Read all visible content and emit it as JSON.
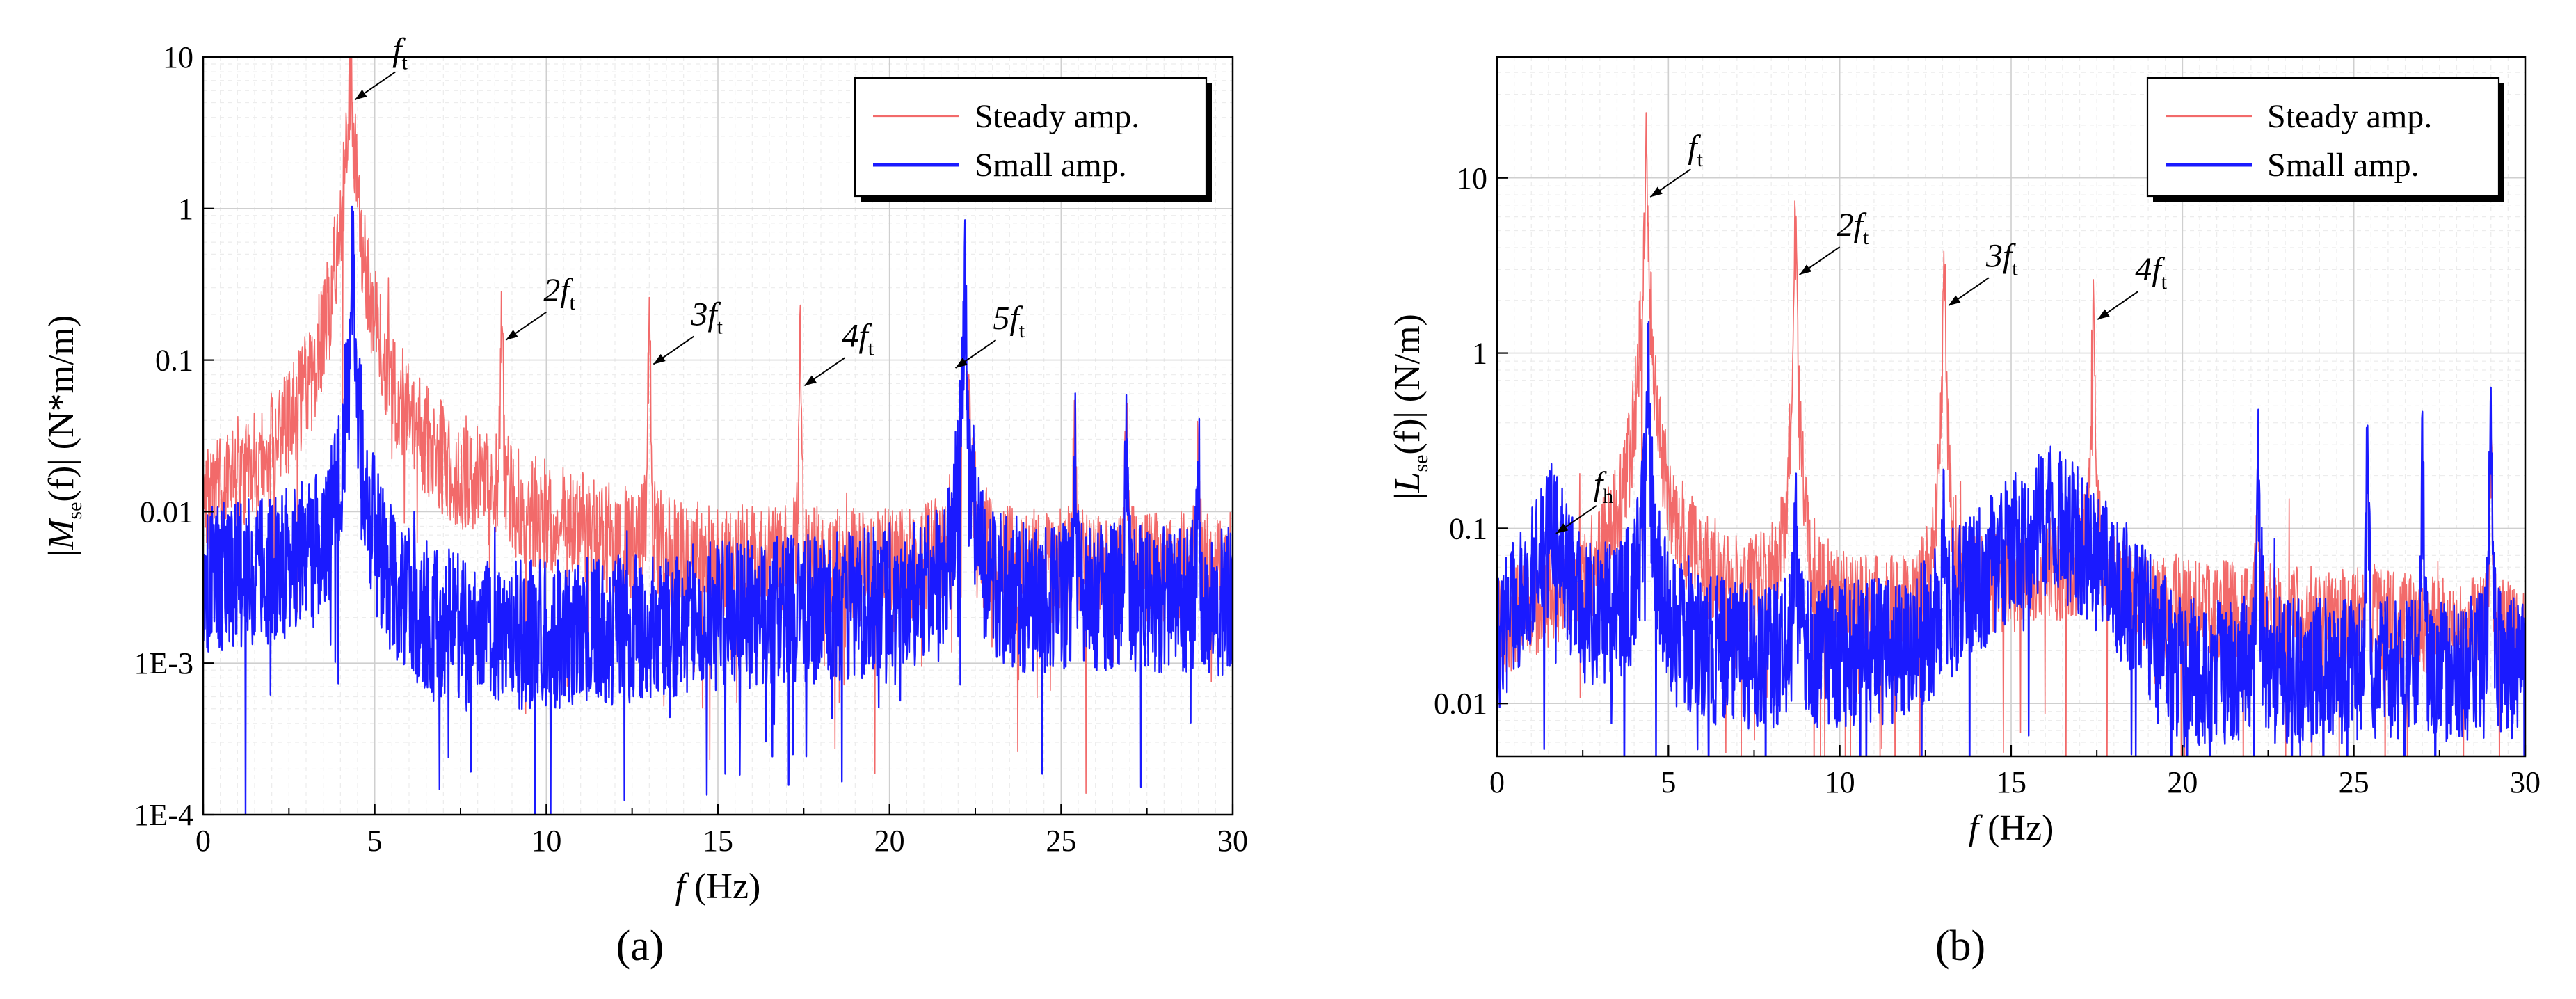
{
  "figure": {
    "panel_a_label": "(a)",
    "panel_b_label": "(b)"
  },
  "chart_data": [
    {
      "type": "line",
      "panel": "a",
      "xlabel": "f (Hz)",
      "ylabel": "|Mse(f)| (N*m/m)",
      "ylabel_parts": {
        "pre": "|",
        "main": "M",
        "sub": "se",
        "arg": "(f)|  (N*m/m)"
      },
      "xlim": [
        0,
        30
      ],
      "ylim_log10": [
        -4,
        1
      ],
      "yscale": "log",
      "xticks": [
        0,
        5,
        10,
        15,
        20,
        25,
        30
      ],
      "yticks": [
        {
          "value": 10,
          "label": "10"
        },
        {
          "value": 1,
          "label": "1"
        },
        {
          "value": 0.1,
          "label": "0.1"
        },
        {
          "value": 0.01,
          "label": "0.01"
        },
        {
          "value": 0.001,
          "label": "1E-3"
        },
        {
          "value": 0.0001,
          "label": "1E-4"
        }
      ],
      "grid": true,
      "legend_position": "top-right",
      "series": [
        {
          "name": "Steady amp.",
          "color": "#f26a6a",
          "baseline": [
            [
              0,
              0.006
            ],
            [
              3.4,
              0.012
            ],
            [
              5.5,
              0.012
            ],
            [
              8.5,
              0.008
            ],
            [
              12,
              0.005
            ],
            [
              14,
              0.004
            ],
            [
              20,
              0.004
            ],
            [
              30,
              0.004
            ]
          ],
          "peaks": [
            [
              4.3,
              5.0,
              0.5
            ],
            [
              8.7,
              0.13,
              0.07
            ],
            [
              13.0,
              0.09,
              0.07
            ],
            [
              17.4,
              0.065,
              0.07
            ],
            [
              22.2,
              0.16,
              0.25
            ],
            [
              25.4,
              0.015,
              0.12
            ],
            [
              26.9,
              0.018,
              0.12
            ],
            [
              29.0,
              0.012,
              0.12
            ]
          ],
          "noise": 0.75,
          "seed": 7
        },
        {
          "name": "Small amp.",
          "color": "#1a1aff",
          "baseline": [
            [
              0,
              0.0035
            ],
            [
              3.0,
              0.004
            ],
            [
              5.5,
              0.0018
            ],
            [
              8,
              0.0014
            ],
            [
              12,
              0.0016
            ],
            [
              15,
              0.002
            ],
            [
              20,
              0.0025
            ],
            [
              30,
              0.0025
            ]
          ],
          "peaks": [
            [
              4.35,
              0.25,
              0.35
            ],
            [
              22.2,
              0.15,
              0.25
            ],
            [
              25.4,
              0.012,
              0.1
            ],
            [
              26.9,
              0.02,
              0.1
            ],
            [
              29.0,
              0.013,
              0.1
            ]
          ],
          "noise": 1.0,
          "seed": 13
        }
      ],
      "annotations": [
        {
          "label": "f",
          "sub": "t",
          "x": 4.3,
          "y": 5.0
        },
        {
          "label": "2f",
          "sub": "t",
          "x": 8.7,
          "y": 0.13
        },
        {
          "label": "3f",
          "sub": "t",
          "x": 13.0,
          "y": 0.09
        },
        {
          "label": "4f",
          "sub": "t",
          "x": 17.4,
          "y": 0.065
        },
        {
          "label": "5f",
          "sub": "t",
          "x": 21.8,
          "y": 0.085
        }
      ]
    },
    {
      "type": "line",
      "panel": "b",
      "xlabel": "f (Hz)",
      "ylabel": "|Lse(f)| (N/m)",
      "ylabel_parts": {
        "pre": "|",
        "main": "L",
        "sub": "se",
        "arg": "(f)| (N/m)"
      },
      "xlim": [
        0,
        30
      ],
      "ylim_log10": [
        -2.301,
        1.69
      ],
      "yscale": "log",
      "xticks": [
        0,
        5,
        10,
        15,
        20,
        25,
        30
      ],
      "yticks": [
        {
          "value": 10,
          "label": "10"
        },
        {
          "value": 1,
          "label": "1"
        },
        {
          "value": 0.1,
          "label": "0.1"
        },
        {
          "value": 0.01,
          "label": "0.01"
        }
      ],
      "grid": true,
      "legend_position": "top-right",
      "series": [
        {
          "name": "Steady amp.",
          "color": "#f26a6a",
          "baseline": [
            [
              0,
              0.025
            ],
            [
              3.6,
              0.05
            ],
            [
              5.5,
              0.05
            ],
            [
              8,
              0.035
            ],
            [
              12,
              0.03
            ],
            [
              16,
              0.06
            ],
            [
              19,
              0.035
            ],
            [
              30,
              0.025
            ]
          ],
          "peaks": [
            [
              4.35,
              7.5,
              0.3
            ],
            [
              8.7,
              2.7,
              0.2
            ],
            [
              13.05,
              1.8,
              0.2
            ],
            [
              17.4,
              1.5,
              0.15
            ],
            [
              22.2,
              0.1,
              0.1
            ],
            [
              25.4,
              0.15,
              0.1
            ],
            [
              29.0,
              0.15,
              0.1
            ]
          ],
          "noise": 0.6,
          "seed": 21
        },
        {
          "name": "Small amp.",
          "color": "#1a1aff",
          "baseline": [
            [
              0,
              0.02
            ],
            [
              1.6,
              0.09
            ],
            [
              2.6,
              0.03
            ],
            [
              3.8,
              0.03
            ],
            [
              5.5,
              0.02
            ],
            [
              8,
              0.018
            ],
            [
              12,
              0.02
            ],
            [
              14,
              0.05
            ],
            [
              16.2,
              0.12
            ],
            [
              18.5,
              0.04
            ],
            [
              20,
              0.015
            ],
            [
              30,
              0.015
            ]
          ],
          "peaks": [
            [
              4.4,
              0.45,
              0.3
            ],
            [
              22.2,
              0.2,
              0.08
            ],
            [
              25.4,
              0.2,
              0.08
            ],
            [
              27.0,
              0.15,
              0.08
            ],
            [
              29.0,
              0.2,
              0.12
            ],
            [
              8.7,
              0.07,
              0.15
            ],
            [
              13.05,
              0.06,
              0.15
            ]
          ],
          "noise": 0.85,
          "seed": 33
        }
      ],
      "annotations": [
        {
          "label": "f",
          "sub": "h",
          "x": 1.6,
          "y": 0.09
        },
        {
          "label": "f",
          "sub": "t",
          "x": 4.35,
          "y": 7.5
        },
        {
          "label": "2f",
          "sub": "t",
          "x": 8.7,
          "y": 2.7
        },
        {
          "label": "3f",
          "sub": "t",
          "x": 13.05,
          "y": 1.8
        },
        {
          "label": "4f",
          "sub": "t",
          "x": 17.4,
          "y": 1.5
        }
      ]
    }
  ]
}
